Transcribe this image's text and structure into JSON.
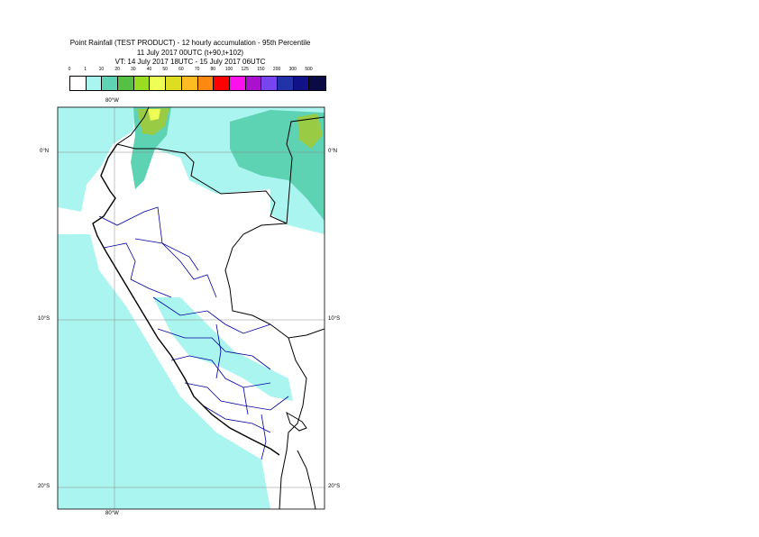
{
  "title": {
    "line1": "Point Rainfall (TEST PRODUCT) - 12 hourly accumulation - 95th Percentile",
    "line2": "11 July 2017 00UTC (t+90,t+102)",
    "line3": "VT: 14 July 2017 18UTC - 15 July 2017 06UTC"
  },
  "legend": {
    "thresholds": [
      "0",
      "1",
      "10",
      "20",
      "30",
      "40",
      "50",
      "60",
      "70",
      "80",
      "100",
      "125",
      "150",
      "200",
      "300",
      "500"
    ],
    "colors": [
      "#ffffff",
      "#aaf5f0",
      "#5ed3b4",
      "#55c043",
      "#99dd22",
      "#eeff55",
      "#dddd22",
      "#ffbb22",
      "#ff8811",
      "#ff0000",
      "#ff11ee",
      "#aa11cc",
      "#7744ee",
      "#2233aa",
      "#111188",
      "#0a0a44"
    ]
  },
  "map": {
    "lon_labels": {
      "top": "80°W",
      "bottom": "80°W"
    },
    "lat_labels": {
      "eq_left": "0°N",
      "eq_right": "0°N",
      "s10_left": "10°S",
      "s10_right": "10°S",
      "s20_left": "20°S",
      "s20_right": "20°S"
    },
    "colors": {
      "rain_light": "#aaf5f0",
      "rain_med": "#5ed3b4",
      "rain_green": "#99cc44",
      "rain_yellow": "#eeff55",
      "coast": "#000000",
      "admin": "#000099",
      "grid": "#888888"
    }
  }
}
